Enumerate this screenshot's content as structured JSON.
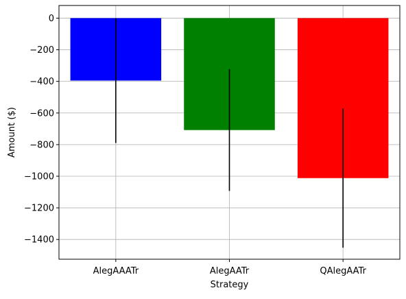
{
  "chart_data": {
    "type": "bar",
    "categories": [
      "AlegAAATr",
      "AlegAATr",
      "QAlegAATr"
    ],
    "values": [
      -395,
      -708,
      -1012
    ],
    "errors": [
      395,
      385,
      440
    ],
    "colors": [
      "#0000ff",
      "#008000",
      "#ff0000"
    ],
    "error_color": "#000000",
    "xlabel": "Strategy",
    "ylabel": "Amount ($)",
    "ylim": [
      -1525,
      80
    ],
    "yticks": [
      0,
      -200,
      -400,
      -600,
      -800,
      -1000,
      -1200,
      -1400
    ],
    "ytick_labels": [
      "0",
      "−200",
      "−400",
      "−600",
      "−800",
      "−1000",
      "−1200",
      "−1400"
    ],
    "grid": true
  }
}
